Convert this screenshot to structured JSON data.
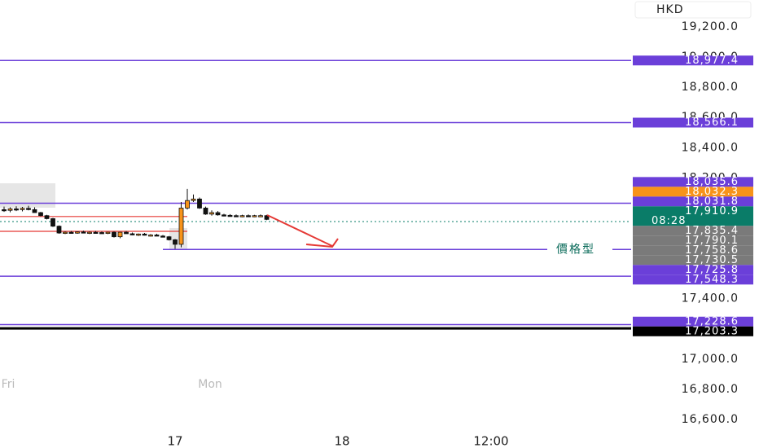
{
  "chart_data": {
    "type": "candlestick",
    "currency": "HKD",
    "ylim": [
      16411,
      19378
    ],
    "yticks": [
      {
        "value": 19200,
        "label": "19,200.0"
      },
      {
        "value": 19000,
        "label": "19,000.0"
      },
      {
        "value": 18800,
        "label": "18,800.0"
      },
      {
        "value": 18600,
        "label": "18,600.0"
      },
      {
        "value": 18400,
        "label": "18,400.0"
      },
      {
        "value": 18200,
        "label": "18,200.0"
      },
      {
        "value": 18000,
        "label": "18,000.0"
      },
      {
        "value": 17800,
        "label": "17,800.0"
      },
      {
        "value": 17600,
        "label": "17,600.0"
      },
      {
        "value": 17400,
        "label": "17,400.0"
      },
      {
        "value": 17200,
        "label": "17,200.0"
      },
      {
        "value": 17000,
        "label": "17,000.0"
      },
      {
        "value": 16800,
        "label": "16,800.0"
      },
      {
        "value": 16600,
        "label": "16,600.0"
      }
    ],
    "time_labels": [
      "Fri",
      "Mon"
    ],
    "date_labels": [
      "17",
      "18",
      "12:00"
    ],
    "bull_color": "#f7931a",
    "bear_color": "#111111",
    "candles": {
      "open": [
        17990,
        17985,
        17995,
        17990,
        17998,
        17990,
        17970,
        17950,
        17930,
        17880,
        17835,
        17840,
        17838,
        17842,
        17836,
        17840,
        17838,
        17835,
        17840,
        17810,
        17840,
        17830,
        17825,
        17828,
        17820,
        17822,
        17815,
        17810,
        17790,
        17760,
        18000,
        18050,
        18060,
        18000,
        17960,
        17970,
        17955,
        17952,
        17950,
        17948,
        17950,
        17947,
        17950,
        17950
      ],
      "high": [
        18010,
        18005,
        18012,
        18008,
        18015,
        18005,
        17975,
        17955,
        17935,
        17885,
        17845,
        17848,
        17845,
        17850,
        17845,
        17848,
        17845,
        17842,
        17845,
        17842,
        17848,
        17838,
        17832,
        17835,
        17828,
        17830,
        17822,
        17815,
        17795,
        18040,
        18127,
        18090,
        18070,
        18010,
        17985,
        17980,
        17962,
        17960,
        17958,
        17956,
        17958,
        17955,
        17958,
        17955
      ],
      "low": [
        17975,
        17972,
        17980,
        17978,
        17985,
        17975,
        17945,
        17925,
        17875,
        17830,
        17828,
        17832,
        17830,
        17835,
        17828,
        17832,
        17830,
        17828,
        17805,
        17800,
        17832,
        17820,
        17815,
        17818,
        17812,
        17814,
        17808,
        17785,
        17730,
        17740,
        17990,
        18040,
        17995,
        17955,
        17950,
        17950,
        17945,
        17944,
        17942,
        17940,
        17942,
        17940,
        17944,
        17920
      ],
      "close": [
        17985,
        17995,
        17990,
        17998,
        17990,
        17970,
        17950,
        17930,
        17880,
        17835,
        17840,
        17838,
        17842,
        17836,
        17840,
        17838,
        17835,
        17840,
        17810,
        17840,
        17830,
        17825,
        17828,
        17820,
        17822,
        17815,
        17810,
        17790,
        17760,
        18000,
        18050,
        18060,
        18000,
        17960,
        17970,
        17955,
        17952,
        17950,
        17948,
        17950,
        17947,
        17950,
        17950,
        17925
      ]
    },
    "levels": [
      {
        "value": 17944,
        "color": "#e53935"
      },
      {
        "value": 17846,
        "color": "#e53935"
      }
    ],
    "current_price": {
      "value": 17910.9,
      "label": "17,910.9",
      "time": "08:28",
      "color": "#0a7c68"
    },
    "price_lines": [
      {
        "value": 18977.4,
        "label": "18,977.4",
        "color": "#6b3fd9",
        "line": "full"
      },
      {
        "value": 18566.1,
        "label": "18,566.1",
        "color": "#6b3fd9",
        "line": "full"
      },
      {
        "value": 18035.6,
        "label": "18,035.6",
        "color": "#6b3fd9",
        "line": "none"
      },
      {
        "value": 18032.3,
        "label": "18,032.3",
        "color": "#f7931a",
        "line": "none"
      },
      {
        "value": 18031.8,
        "label": "18,031.8",
        "color": "#6b3fd9",
        "line": "full"
      },
      {
        "value": 17835.4,
        "label": "17,835.4",
        "color": "#7a7a7a",
        "line": "none"
      },
      {
        "value": 17790.1,
        "label": "17,790.1",
        "color": "#7a7a7a",
        "line": "none"
      },
      {
        "value": 17758.6,
        "label": "17,758.6",
        "color": "#7a7a7a",
        "line": "none"
      },
      {
        "value": 17730.5,
        "label": "17,730.5",
        "color": "#7a7a7a",
        "line": "none"
      },
      {
        "value": 17725.8,
        "label": "17,725.8",
        "color": "#6b3fd9",
        "line": "partial",
        "note": "價格型"
      },
      {
        "value": 17548.3,
        "label": "17,548.3",
        "color": "#6b3fd9",
        "line": "full"
      },
      {
        "value": 17228.6,
        "label": "17,228.6",
        "color": "#6b3fd9",
        "line": "full"
      },
      {
        "value": 17203.3,
        "label": "17,203.3",
        "color": "#000000",
        "line": "full"
      }
    ]
  }
}
